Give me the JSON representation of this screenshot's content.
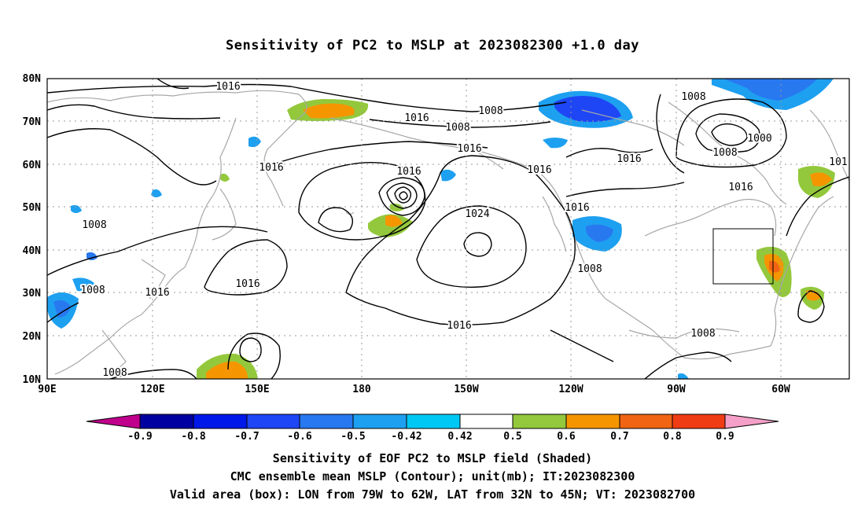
{
  "title": "Sensitivity of PC2 to MSLP at 2023082300 +1.0 day",
  "map": {
    "lat_labels": [
      "80N",
      "70N",
      "60N",
      "50N",
      "40N",
      "30N",
      "20N",
      "10N"
    ],
    "lon_labels": [
      "90E",
      "120E",
      "150E",
      "180",
      "150W",
      "120W",
      "90W",
      "60W"
    ],
    "contour_labels": [
      "1016",
      "1008",
      "1016",
      "1016",
      "1016",
      "1008",
      "1016",
      "1016",
      "1024",
      "1016",
      "1016",
      "1008",
      "1008",
      "1016",
      "1016",
      "1008",
      "1000",
      "1008",
      "1016",
      "101",
      "1008",
      "1008",
      "1008",
      "1016"
    ],
    "valid_area": {
      "lon_from": "79W",
      "lon_to": "62W",
      "lat_from": "32N",
      "lat_to": "45N"
    }
  },
  "colorbar": {
    "labels": [
      "-0.9",
      "-0.8",
      "-0.7",
      "-0.6",
      "-0.5",
      "-0.42",
      "0.42",
      "0.5",
      "0.6",
      "0.7",
      "0.8",
      "0.9"
    ],
    "colors": [
      "#c0008c",
      "#0000a0",
      "#0018e8",
      "#1e46f5",
      "#2878f0",
      "#1ea0f0",
      "#00c8f5",
      "#ffffff",
      "#94c83c",
      "#f59600",
      "#f06414",
      "#f03c14",
      "#e60000",
      "#f5a0c8"
    ]
  },
  "footer": {
    "line1": "Sensitivity of EOF PC2 to MSLP field (Shaded)",
    "line2": "CMC ensemble mean MSLP (Contour); unit(mb); IT:2023082300",
    "line3": "Valid area (box): LON from 79W to 62W, LAT from 32N to 45N; VT: 2023082700"
  }
}
